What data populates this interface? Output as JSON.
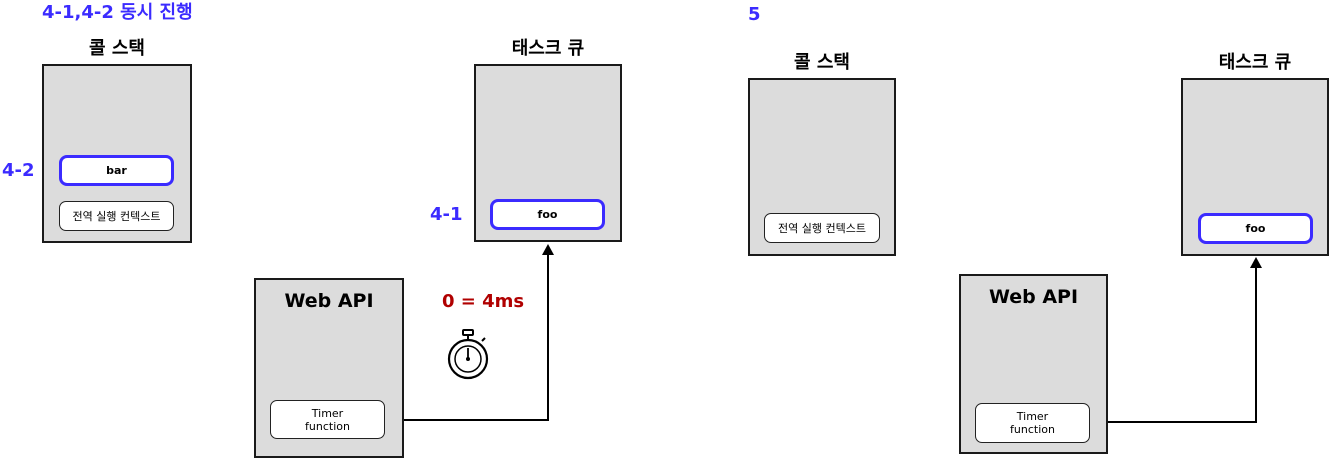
{
  "left": {
    "heading": "4-1,4-2 동시 진행",
    "call_stack": {
      "title": "콜 스택",
      "highlighted_label": "4-2",
      "highlighted_item": "bar",
      "global_context": "전역 실행 컨텍스트"
    },
    "task_queue": {
      "title": "태스크 큐",
      "highlighted_label": "4-1",
      "highlighted_item": "foo"
    },
    "web_api": {
      "title": "Web API",
      "timer": "Timer\nfunction",
      "delay": "0 = 4ms"
    }
  },
  "right": {
    "heading": "5",
    "call_stack": {
      "title": "콜 스택",
      "global_context": "전역 실행 컨텍스트"
    },
    "task_queue": {
      "title": "태스크 큐",
      "highlighted_item": "foo"
    },
    "web_api": {
      "title": "Web API",
      "timer": "Timer\nfunction"
    }
  },
  "colors": {
    "highlight": "#3b2bff",
    "delay": "#b00000",
    "panel": "#dcdcdc"
  },
  "icons": [
    "stopwatch-icon",
    "arrow-up-icon"
  ]
}
